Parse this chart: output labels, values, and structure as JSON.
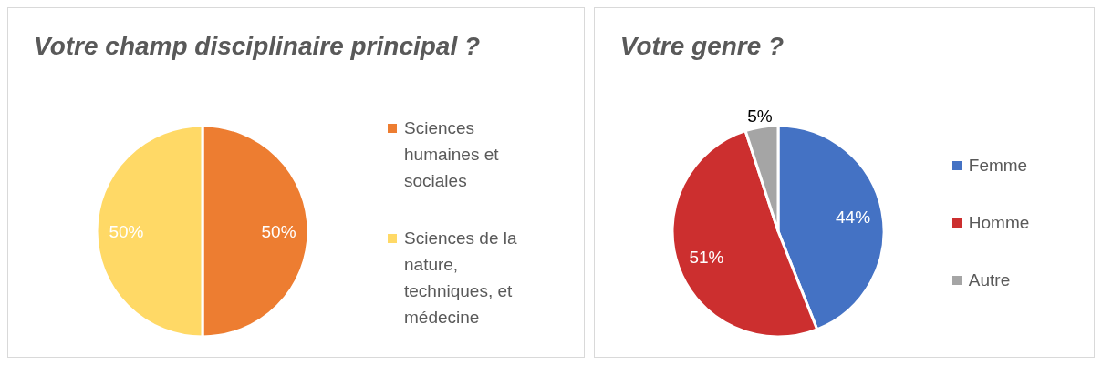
{
  "chart_data": [
    {
      "type": "pie",
      "title": "Votre champ disciplinaire principal ?",
      "categories": [
        "Sciences humaines et sociales",
        "Sciences de la nature, techniques, et médecine"
      ],
      "values": [
        50,
        50
      ],
      "colors": [
        "#ed7d31",
        "#ffd966"
      ],
      "value_labels": [
        "50%",
        "50%"
      ],
      "legend": "right"
    },
    {
      "type": "pie",
      "title": "Votre genre ?",
      "categories": [
        "Femme",
        "Homme",
        "Autre"
      ],
      "values": [
        44,
        51,
        5
      ],
      "colors": [
        "#4472c4",
        "#cc2f2f",
        "#a5a5a5"
      ],
      "value_labels": [
        "44%",
        "51%",
        "5%"
      ],
      "legend": "right"
    }
  ]
}
